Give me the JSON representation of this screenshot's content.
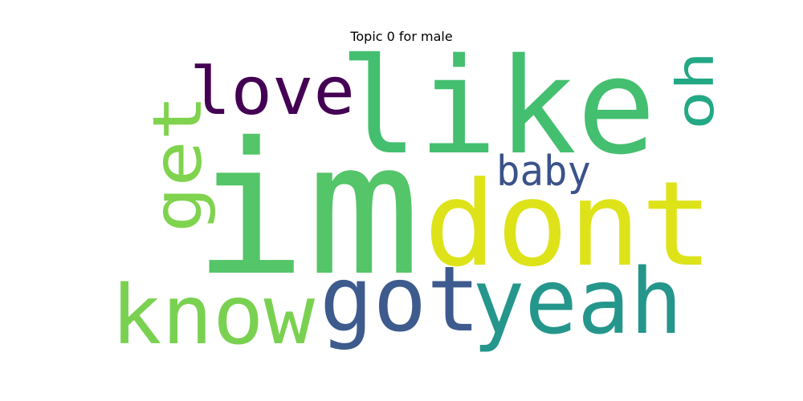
{
  "title": "Topic 0 for male",
  "words": [
    {
      "text": "im",
      "color": "#54c568"
    },
    {
      "text": "like",
      "color": "#44bf70"
    },
    {
      "text": "dont",
      "color": "#dde318"
    },
    {
      "text": "got",
      "color": "#3e5b8e"
    },
    {
      "text": "yeah",
      "color": "#25968b"
    },
    {
      "text": "know",
      "color": "#7ad151"
    },
    {
      "text": "love",
      "color": "#440154"
    },
    {
      "text": "get",
      "color": "#7fd34e"
    },
    {
      "text": "oh",
      "color": "#22a884"
    },
    {
      "text": "baby",
      "color": "#3b528b"
    }
  ]
}
